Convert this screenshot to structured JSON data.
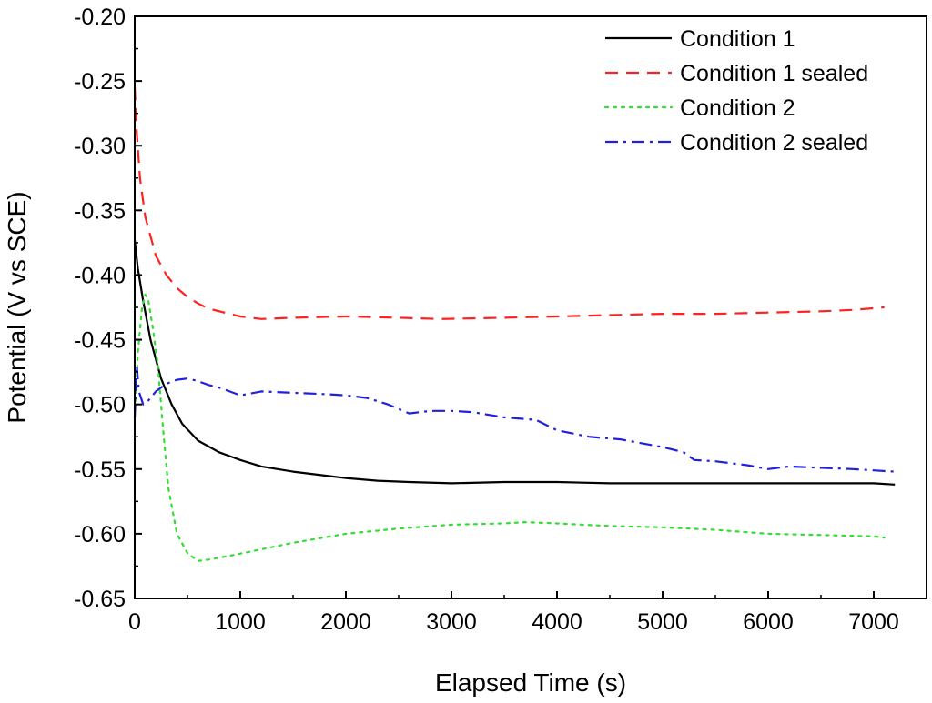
{
  "chart_data": {
    "type": "line",
    "title": "",
    "xlabel": "Elapsed Time (s)",
    "ylabel": "Potential (V vs SCE)",
    "xlim": [
      0,
      7500
    ],
    "ylim": [
      -0.65,
      -0.2
    ],
    "xticks": [
      0,
      1000,
      2000,
      3000,
      4000,
      5000,
      6000,
      7000
    ],
    "yticks": [
      -0.2,
      -0.25,
      -0.3,
      -0.35,
      -0.4,
      -0.45,
      -0.5,
      -0.55,
      -0.6,
      -0.65
    ],
    "xtick_labels": [
      "0",
      "1000",
      "2000",
      "3000",
      "4000",
      "5000",
      "6000",
      "7000"
    ],
    "ytick_labels": [
      "-0.20",
      "-0.25",
      "-0.30",
      "-0.35",
      "-0.40",
      "-0.45",
      "-0.50",
      "-0.55",
      "-0.60",
      "-0.65"
    ],
    "grid": false,
    "legend_position": "top-right",
    "series": [
      {
        "name": "Condition 1",
        "color": "#000000",
        "dash": "solid",
        "x": [
          0,
          30,
          80,
          150,
          250,
          350,
          450,
          600,
          800,
          1000,
          1200,
          1500,
          1800,
          2000,
          2300,
          2600,
          3000,
          3500,
          4000,
          4500,
          5000,
          5500,
          6000,
          6500,
          7000,
          7200
        ],
        "y": [
          -0.373,
          -0.395,
          -0.42,
          -0.45,
          -0.48,
          -0.5,
          -0.515,
          -0.528,
          -0.537,
          -0.543,
          -0.548,
          -0.552,
          -0.555,
          -0.557,
          -0.559,
          -0.56,
          -0.561,
          -0.56,
          -0.56,
          -0.561,
          -0.561,
          -0.561,
          -0.561,
          -0.561,
          -0.561,
          -0.562
        ]
      },
      {
        "name": "Condition 1 sealed",
        "color": "#ff2020",
        "dash": "dashed",
        "x": [
          0,
          20,
          50,
          100,
          200,
          300,
          400,
          500,
          600,
          700,
          800,
          1000,
          1200,
          1500,
          2000,
          2500,
          2900,
          3500,
          4000,
          4500,
          5000,
          5500,
          6000,
          6500,
          6800,
          7100
        ],
        "y": [
          -0.255,
          -0.29,
          -0.325,
          -0.355,
          -0.385,
          -0.4,
          -0.41,
          -0.417,
          -0.422,
          -0.426,
          -0.428,
          -0.432,
          -0.434,
          -0.433,
          -0.432,
          -0.433,
          -0.434,
          -0.433,
          -0.432,
          -0.431,
          -0.43,
          -0.43,
          -0.429,
          -0.428,
          -0.427,
          -0.425
        ]
      },
      {
        "name": "Condition 2",
        "color": "#33dd33",
        "dash": "dotted",
        "x": [
          0,
          30,
          70,
          100,
          130,
          170,
          220,
          270,
          320,
          400,
          500,
          600,
          700,
          900,
          1200,
          1500,
          2000,
          2500,
          3000,
          3500,
          3700,
          4000,
          4500,
          5000,
          5500,
          6000,
          6500,
          7000,
          7100
        ],
        "y": [
          -0.51,
          -0.46,
          -0.425,
          -0.415,
          -0.42,
          -0.44,
          -0.47,
          -0.52,
          -0.565,
          -0.6,
          -0.615,
          -0.621,
          -0.62,
          -0.617,
          -0.612,
          -0.607,
          -0.6,
          -0.596,
          -0.593,
          -0.592,
          -0.591,
          -0.592,
          -0.594,
          -0.595,
          -0.597,
          -0.6,
          -0.601,
          -0.602,
          -0.603
        ]
      },
      {
        "name": "Condition 2 sealed",
        "color": "#2020dd",
        "dash": "dashdot",
        "x": [
          0,
          20,
          40,
          60,
          80,
          120,
          200,
          300,
          400,
          500,
          600,
          700,
          800,
          900,
          1000,
          1200,
          1500,
          1800,
          2000,
          2200,
          2400,
          2600,
          2800,
          3000,
          3200,
          3500,
          3800,
          4000,
          4300,
          4600,
          5000,
          5200,
          5300,
          5500,
          5800,
          6000,
          6200,
          6500,
          6800,
          7000,
          7200
        ],
        "y": [
          -0.51,
          -0.47,
          -0.49,
          -0.495,
          -0.5,
          -0.498,
          -0.49,
          -0.484,
          -0.481,
          -0.48,
          -0.482,
          -0.485,
          -0.487,
          -0.49,
          -0.493,
          -0.49,
          -0.491,
          -0.492,
          -0.493,
          -0.495,
          -0.5,
          -0.507,
          -0.505,
          -0.505,
          -0.506,
          -0.51,
          -0.512,
          -0.52,
          -0.525,
          -0.527,
          -0.533,
          -0.537,
          -0.543,
          -0.544,
          -0.547,
          -0.55,
          -0.548,
          -0.549,
          -0.55,
          -0.551,
          -0.552
        ]
      }
    ]
  }
}
